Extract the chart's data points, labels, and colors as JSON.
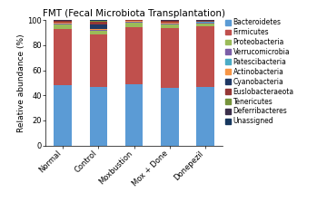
{
  "title": "FMT (Fecal Microbiota Transplantation)",
  "categories": [
    "Normal",
    "Control",
    "Moxbustion",
    "Mox + Done",
    "Donepezil"
  ],
  "ylabel": "Relative abundance (%)",
  "ylim": [
    0,
    100
  ],
  "legend_labels": [
    "Bacteroidetes",
    "Firmicutes",
    "Proteobacteria",
    "Verrucomicrobia",
    "Patescibacteria",
    "Actinobacteria",
    "Cyanobacteria",
    "Euslobacteraeota",
    "Tenericutes",
    "Deferribacteres",
    "Unassigned"
  ],
  "colors": [
    "#5B9BD5",
    "#C0504D",
    "#9BBB59",
    "#7B5EA7",
    "#4BACC6",
    "#F79646",
    "#1F3864",
    "#953735",
    "#76933C",
    "#3B2F4A",
    "#17375E"
  ],
  "data": {
    "Bacteroidetes": [
      48.5,
      46.5,
      49.0,
      46.0,
      46.5
    ],
    "Firmicutes": [
      44.5,
      42.5,
      45.5,
      48.0,
      48.5
    ],
    "Proteobacteria": [
      3.5,
      2.5,
      3.5,
      2.5,
      2.5
    ],
    "Verrucomicrobia": [
      0.8,
      0.8,
      0.8,
      0.8,
      0.8
    ],
    "Patescibacteria": [
      0.3,
      0.3,
      0.3,
      0.3,
      0.3
    ],
    "Actinobacteria": [
      0.2,
      0.2,
      0.2,
      0.2,
      0.2
    ],
    "Cyanobacteria": [
      0.2,
      3.5,
      0.2,
      0.5,
      0.2
    ],
    "Euslobacteraeota": [
      1.5,
      2.7,
      0.5,
      1.2,
      0.5
    ],
    "Tenericutes": [
      0.2,
      0.3,
      0.0,
      0.3,
      0.3
    ],
    "Deferribacteres": [
      0.2,
      0.2,
      0.0,
      0.2,
      0.2
    ],
    "Unassigned": [
      0.1,
      0.5,
      0.0,
      0.0,
      0.0
    ]
  },
  "title_fontsize": 7.5,
  "axis_fontsize": 6.5,
  "tick_fontsize": 6,
  "legend_fontsize": 5.5
}
